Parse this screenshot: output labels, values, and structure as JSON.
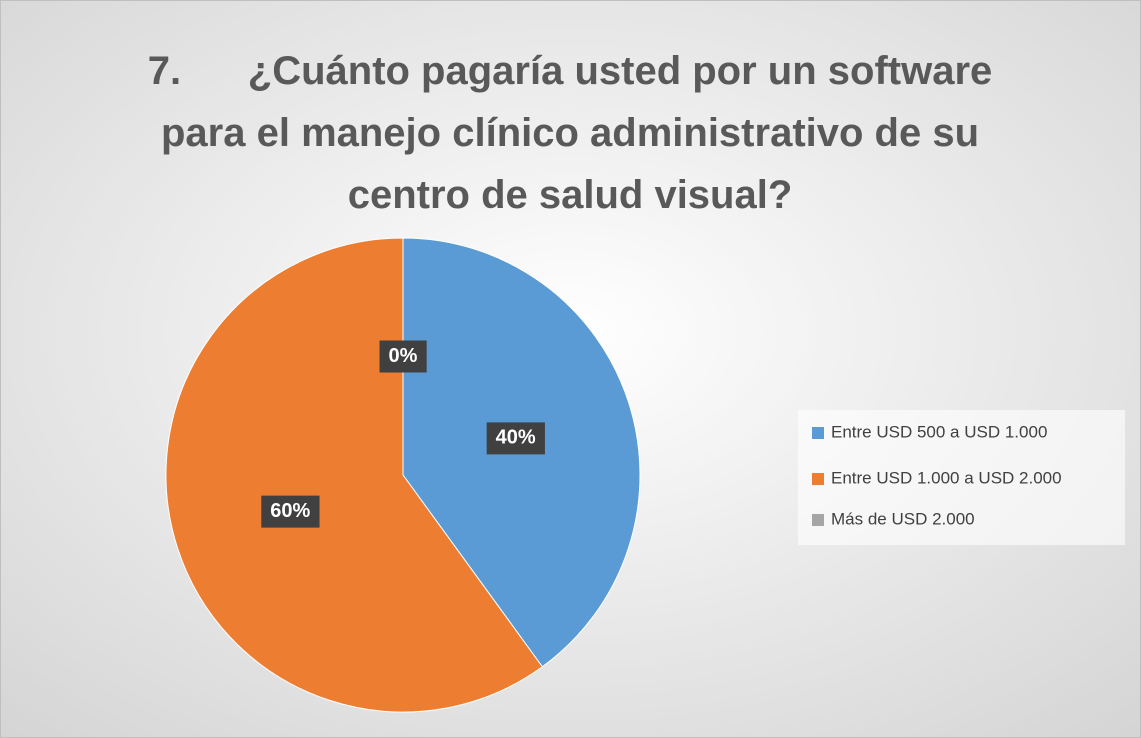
{
  "chart_data": {
    "type": "pie",
    "title": [
      "7.      ¿Cuánto pagaría usted por un software",
      "para el manejo clínico administrativo de su",
      "centro de salud visual?"
    ],
    "categories": [
      "Entre USD 500 a USD 1.000",
      "Entre USD 1.000 a USD 2.000",
      "Más de USD 2.000"
    ],
    "values": [
      40,
      60,
      0
    ],
    "value_labels": [
      "40%",
      "60%",
      "0%"
    ],
    "colors": [
      "#5b9bd5",
      "#ed7d31",
      "#a5a5a5"
    ],
    "legend": "right"
  }
}
